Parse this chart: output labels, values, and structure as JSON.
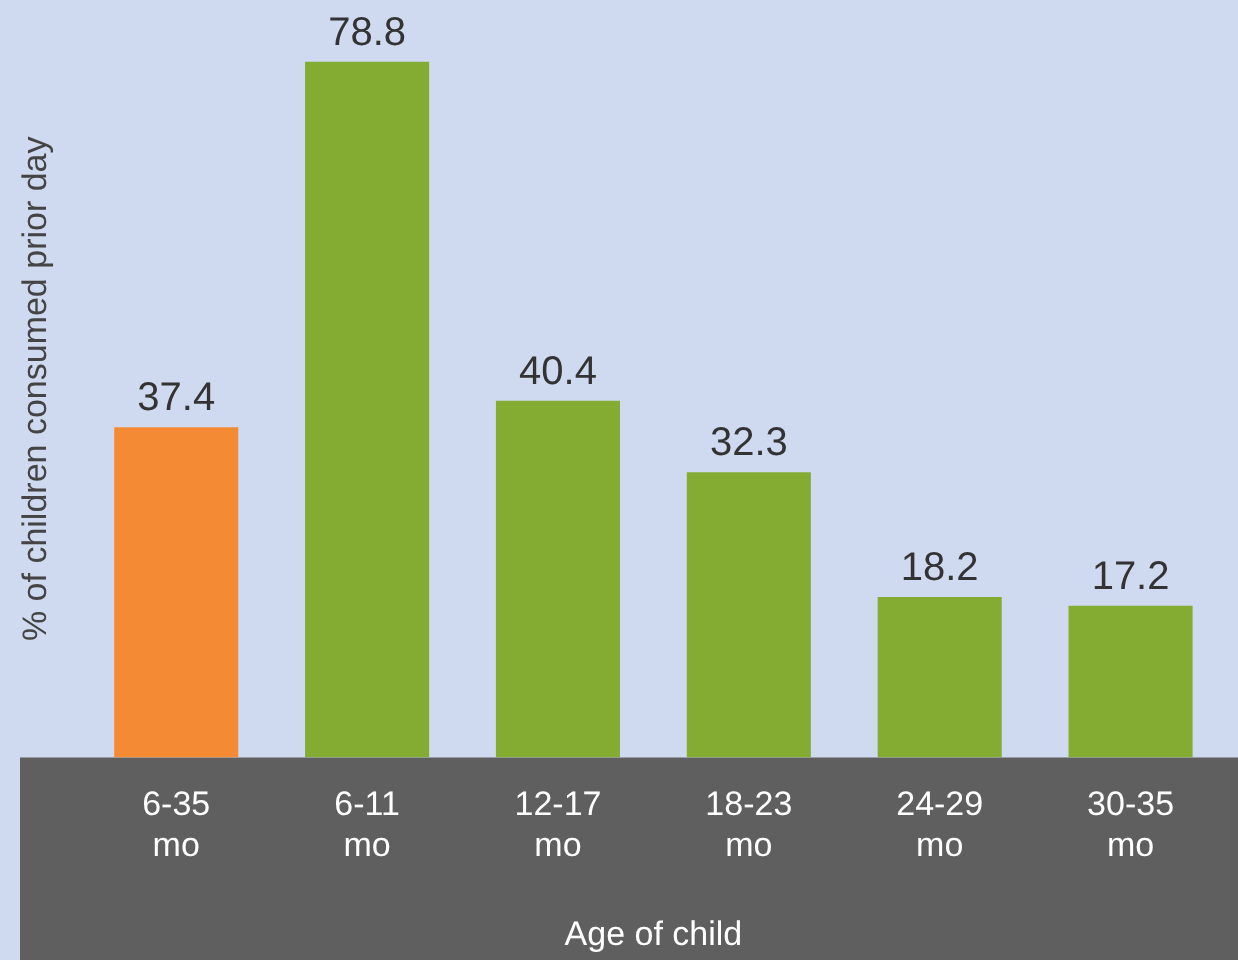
{
  "chart_data": {
    "type": "bar",
    "xlabel": "Age of child",
    "ylabel": "% of children consumed prior day",
    "categories": [
      "6-35 mo",
      "6-11 mo",
      "12-17 mo",
      "18-23 mo",
      "24-29 mo",
      "30-35 mo"
    ],
    "values": [
      37.4,
      78.8,
      40.4,
      32.3,
      18.2,
      17.2
    ],
    "colors": [
      "#f58a35",
      "#84ac33",
      "#84ac33",
      "#84ac33",
      "#84ac33",
      "#84ac33"
    ],
    "data_labels": true,
    "grid": false,
    "legend": false
  }
}
